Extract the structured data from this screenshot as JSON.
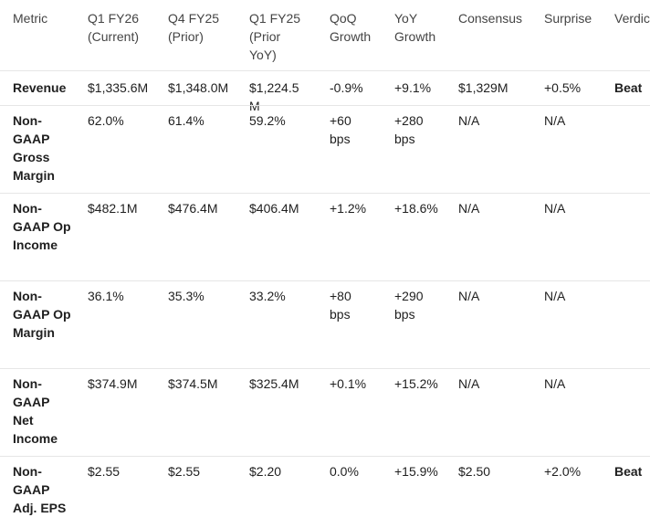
{
  "table": {
    "header": [
      "Metric",
      "Q1 FY26 (Current)",
      "Q4 FY25 (Prior)",
      "Q1 FY25 (Prior YoY)",
      "QoQ Growth",
      "YoY Growth",
      "Consensus",
      "Surprise",
      "Verdict"
    ],
    "rows": [
      [
        "Revenue",
        "$1,335.6M",
        "$1,348.0M",
        "$1,224.5M",
        "-0.9%",
        "+9.1%",
        "$1,329M",
        "+0.5%",
        "Beat"
      ],
      [
        "Non-GAAP Gross Margin",
        "62.0%",
        "61.4%",
        "59.2%",
        "+60 bps",
        "+280 bps",
        "N/A",
        "N/A",
        ""
      ],
      [
        "Non-GAAP Op Income",
        "$482.1M",
        "$476.4M",
        "$406.4M",
        "+1.2%",
        "+18.6%",
        "N/A",
        "N/A",
        ""
      ],
      [
        "Non-GAAP Op Margin",
        "36.1%",
        "35.3%",
        "33.2%",
        "+80 bps",
        "+290 bps",
        "N/A",
        "N/A",
        ""
      ],
      [
        "Non-GAAP Net Income",
        "$374.9M",
        "$374.5M",
        "$325.4M",
        "+0.1%",
        "+15.2%",
        "N/A",
        "N/A",
        ""
      ],
      [
        "Non-GAAP Adj. EPS",
        "$2.55",
        "$2.55",
        "$2.20",
        "0.0%",
        "+15.9%",
        "$2.50",
        "+2.0%",
        "Beat"
      ]
    ]
  }
}
